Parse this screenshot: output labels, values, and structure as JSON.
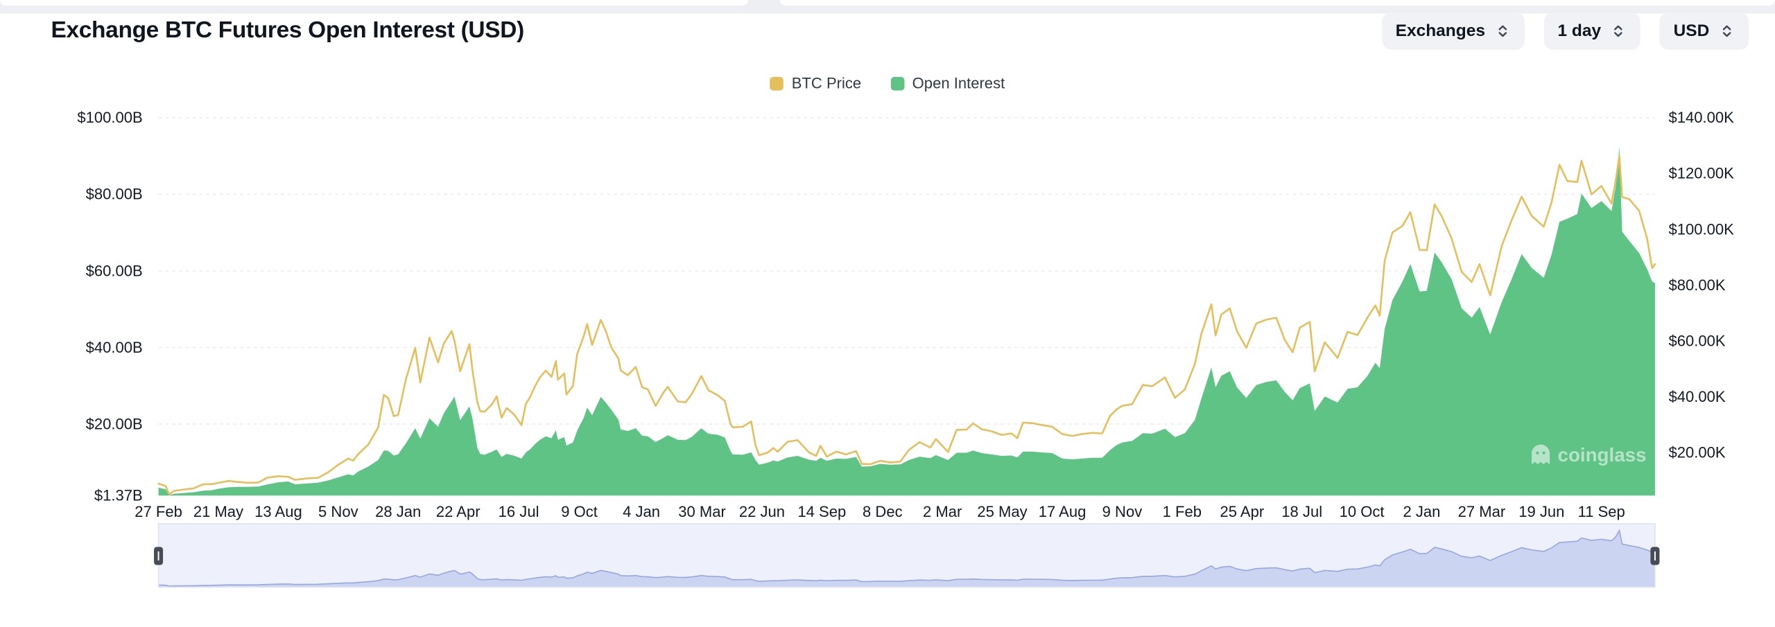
{
  "header": {
    "title": "Exchange BTC Futures Open Interest (USD)",
    "controls": [
      {
        "label": "Exchanges",
        "type": "dropdown"
      },
      {
        "label": "1 day",
        "type": "dropdown"
      },
      {
        "label": "USD",
        "type": "dropdown"
      }
    ]
  },
  "legend": [
    {
      "label": "BTC Price",
      "color": "#e5bf5e"
    },
    {
      "label": "Open Interest",
      "color": "#5ec385"
    }
  ],
  "watermark": "coinglass",
  "chart_data": {
    "type": "line+area",
    "title": "Exchange BTC Futures Open Interest (USD)",
    "grid": "horizontal-dashed",
    "legend_position": "top-center",
    "x_axis": {
      "tick_labels": [
        "27 Feb",
        "21 May",
        "13 Aug",
        "5 Nov",
        "28 Jan",
        "22 Apr",
        "16 Jul",
        "9 Oct",
        "4 Jan",
        "30 Mar",
        "22 Jun",
        "14 Sep",
        "8 Dec",
        "2 Mar",
        "25 May",
        "17 Aug",
        "9 Nov",
        "1 Feb",
        "25 Apr",
        "18 Jul",
        "10 Oct",
        "2 Jan",
        "27 Mar",
        "19 Jun",
        "11 Sep"
      ],
      "tick_dates": [
        "2020-02-27",
        "2020-05-21",
        "2020-08-13",
        "2020-11-05",
        "2021-01-28",
        "2021-04-22",
        "2021-07-16",
        "2021-10-09",
        "2022-01-04",
        "2022-03-30",
        "2022-06-22",
        "2022-09-14",
        "2022-12-08",
        "2023-03-02",
        "2023-05-25",
        "2023-08-17",
        "2023-11-09",
        "2024-02-01",
        "2024-04-25",
        "2024-07-18",
        "2024-10-10",
        "2025-01-02",
        "2025-03-27",
        "2025-06-19",
        "2025-09-11"
      ]
    },
    "y_left": {
      "series": "Open Interest",
      "unit": "USD",
      "tick_labels": [
        "$100.00B",
        "$80.00B",
        "$60.00B",
        "$40.00B",
        "$20.00B",
        "$1.37B"
      ],
      "tick_values": [
        100,
        80,
        60,
        40,
        20,
        1.37
      ]
    },
    "y_right": {
      "series": "BTC Price",
      "unit": "USD",
      "tick_labels": [
        "$140.00K",
        "$120.00K",
        "$100.00K",
        "$80.00K",
        "$60.00K",
        "$40.00K",
        "$20.00K"
      ],
      "tick_values": [
        140,
        120,
        100,
        80,
        60,
        40,
        20
      ]
    },
    "series": [
      {
        "name": "BTC Price",
        "type": "line",
        "axis": "right",
        "color": "#e5bf5e",
        "unit": "USD thousands",
        "column": 1
      },
      {
        "name": "Open Interest",
        "type": "area",
        "axis": "left",
        "color": "#5ec385",
        "unit": "USD billions",
        "column": 2
      }
    ],
    "columns": [
      "date",
      "btc_price_usd_thousands",
      "open_interest_usd_billions"
    ],
    "points": [
      [
        "2020-02-27",
        8.8,
        3.4
      ],
      [
        "2020-03-08",
        8.0,
        3.0
      ],
      [
        "2020-03-13",
        4.9,
        1.4
      ],
      [
        "2020-03-20",
        6.2,
        1.8
      ],
      [
        "2020-04-02",
        6.7,
        2.0
      ],
      [
        "2020-04-16",
        7.1,
        2.2
      ],
      [
        "2020-04-30",
        8.6,
        2.6
      ],
      [
        "2020-05-11",
        8.6,
        2.7
      ],
      [
        "2020-05-21",
        9.1,
        3.1
      ],
      [
        "2020-06-04",
        9.8,
        3.5
      ],
      [
        "2020-06-18",
        9.4,
        3.6
      ],
      [
        "2020-07-02",
        9.1,
        3.6
      ],
      [
        "2020-07-16",
        9.2,
        3.7
      ],
      [
        "2020-07-28",
        10.9,
        4.2
      ],
      [
        "2020-08-13",
        11.5,
        4.8
      ],
      [
        "2020-08-27",
        11.3,
        5.0
      ],
      [
        "2020-09-05",
        10.2,
        4.3
      ],
      [
        "2020-09-24",
        10.7,
        4.5
      ],
      [
        "2020-10-08",
        10.9,
        4.7
      ],
      [
        "2020-10-22",
        12.9,
        5.3
      ],
      [
        "2020-11-05",
        15.6,
        6.1
      ],
      [
        "2020-11-19",
        17.8,
        6.9
      ],
      [
        "2020-11-26",
        17.1,
        6.6
      ],
      [
        "2020-12-03",
        19.4,
        7.6
      ],
      [
        "2020-12-17",
        22.8,
        8.9
      ],
      [
        "2020-12-31",
        29.0,
        10.6
      ],
      [
        "2021-01-08",
        40.6,
        13.1
      ],
      [
        "2021-01-14",
        39.5,
        13.0
      ],
      [
        "2021-01-22",
        33.0,
        11.8
      ],
      [
        "2021-01-28",
        33.4,
        12.1
      ],
      [
        "2021-02-08",
        46.4,
        15.0
      ],
      [
        "2021-02-21",
        57.5,
        18.9
      ],
      [
        "2021-02-28",
        45.1,
        16.2
      ],
      [
        "2021-03-13",
        61.2,
        21.5
      ],
      [
        "2021-03-25",
        52.3,
        19.3
      ],
      [
        "2021-04-02",
        59.0,
        22.8
      ],
      [
        "2021-04-13",
        63.5,
        26.0
      ],
      [
        "2021-04-17",
        60.0,
        27.2
      ],
      [
        "2021-04-25",
        49.1,
        21.0
      ],
      [
        "2021-05-08",
        58.8,
        24.6
      ],
      [
        "2021-05-12",
        49.7,
        21.5
      ],
      [
        "2021-05-19",
        38.0,
        13.8
      ],
      [
        "2021-05-23",
        34.8,
        12.2
      ],
      [
        "2021-05-29",
        34.6,
        12.0
      ],
      [
        "2021-06-09",
        37.4,
        12.8
      ],
      [
        "2021-06-15",
        40.1,
        13.4
      ],
      [
        "2021-06-22",
        32.5,
        11.4
      ],
      [
        "2021-06-29",
        35.9,
        12.2
      ],
      [
        "2021-07-09",
        33.8,
        11.8
      ],
      [
        "2021-07-20",
        29.8,
        11.0
      ],
      [
        "2021-07-26",
        37.3,
        12.6
      ],
      [
        "2021-08-01",
        39.9,
        13.4
      ],
      [
        "2021-08-08",
        43.8,
        14.8
      ],
      [
        "2021-08-15",
        47.0,
        15.9
      ],
      [
        "2021-08-23",
        49.3,
        16.8
      ],
      [
        "2021-08-31",
        47.1,
        16.3
      ],
      [
        "2021-09-06",
        52.7,
        18.4
      ],
      [
        "2021-09-09",
        46.1,
        15.9
      ],
      [
        "2021-09-18",
        48.3,
        16.6
      ],
      [
        "2021-09-21",
        40.7,
        14.4
      ],
      [
        "2021-09-30",
        43.8,
        15.2
      ],
      [
        "2021-10-06",
        55.3,
        18.3
      ],
      [
        "2021-10-15",
        61.6,
        21.6
      ],
      [
        "2021-10-20",
        66.0,
        24.3
      ],
      [
        "2021-10-27",
        58.5,
        22.3
      ],
      [
        "2021-11-08",
        67.5,
        27.1
      ],
      [
        "2021-11-15",
        63.6,
        25.6
      ],
      [
        "2021-11-23",
        57.6,
        23.7
      ],
      [
        "2021-12-03",
        53.6,
        21.1
      ],
      [
        "2021-12-06",
        49.4,
        18.6
      ],
      [
        "2021-12-16",
        47.7,
        18.2
      ],
      [
        "2021-12-27",
        50.7,
        18.9
      ],
      [
        "2022-01-05",
        43.4,
        17.0
      ],
      [
        "2022-01-13",
        42.6,
        16.8
      ],
      [
        "2022-01-24",
        36.7,
        15.3
      ],
      [
        "2022-02-04",
        41.5,
        16.4
      ],
      [
        "2022-02-10",
        43.5,
        17.1
      ],
      [
        "2022-02-24",
        38.3,
        15.9
      ],
      [
        "2022-03-07",
        38.0,
        15.8
      ],
      [
        "2022-03-16",
        41.1,
        16.7
      ],
      [
        "2022-03-29",
        47.4,
        18.9
      ],
      [
        "2022-04-08",
        42.3,
        17.5
      ],
      [
        "2022-04-21",
        40.5,
        17.2
      ],
      [
        "2022-05-01",
        38.5,
        16.5
      ],
      [
        "2022-05-09",
        30.1,
        12.9
      ],
      [
        "2022-05-12",
        29.0,
        12.1
      ],
      [
        "2022-05-26",
        29.2,
        12.0
      ],
      [
        "2022-06-07",
        31.1,
        12.6
      ],
      [
        "2022-06-13",
        22.5,
        10.6
      ],
      [
        "2022-06-18",
        19.0,
        9.4
      ],
      [
        "2022-06-30",
        19.9,
        9.9
      ],
      [
        "2022-07-08",
        21.6,
        10.5
      ],
      [
        "2022-07-14",
        20.3,
        10.2
      ],
      [
        "2022-07-28",
        23.8,
        11.3
      ],
      [
        "2022-08-11",
        24.4,
        11.7
      ],
      [
        "2022-08-27",
        20.0,
        10.7
      ],
      [
        "2022-09-06",
        18.8,
        10.4
      ],
      [
        "2022-09-12",
        22.4,
        11.2
      ],
      [
        "2022-09-21",
        18.5,
        10.4
      ],
      [
        "2022-10-04",
        20.3,
        11.0
      ],
      [
        "2022-10-18",
        19.3,
        10.9
      ],
      [
        "2022-11-01",
        20.5,
        11.4
      ],
      [
        "2022-11-09",
        15.9,
        8.9
      ],
      [
        "2022-11-21",
        15.8,
        9.0
      ],
      [
        "2022-12-05",
        17.0,
        9.6
      ],
      [
        "2022-12-19",
        16.4,
        9.4
      ],
      [
        "2023-01-02",
        16.7,
        9.5
      ],
      [
        "2023-01-14",
        20.9,
        10.6
      ],
      [
        "2023-01-29",
        23.7,
        11.5
      ],
      [
        "2023-02-13",
        21.8,
        11.1
      ],
      [
        "2023-02-21",
        24.8,
        11.9
      ],
      [
        "2023-03-10",
        20.2,
        10.6
      ],
      [
        "2023-03-22",
        28.1,
        12.5
      ],
      [
        "2023-04-05",
        28.2,
        12.5
      ],
      [
        "2023-04-14",
        30.4,
        13.1
      ],
      [
        "2023-04-26",
        28.3,
        12.4
      ],
      [
        "2023-05-10",
        27.6,
        12.1
      ],
      [
        "2023-05-24",
        26.3,
        11.7
      ],
      [
        "2023-06-07",
        26.8,
        11.8
      ],
      [
        "2023-06-15",
        25.1,
        11.3
      ],
      [
        "2023-06-23",
        30.7,
        12.8
      ],
      [
        "2023-07-06",
        30.5,
        12.8
      ],
      [
        "2023-07-20",
        29.8,
        12.6
      ],
      [
        "2023-08-03",
        29.2,
        12.4
      ],
      [
        "2023-08-17",
        26.6,
        11.0
      ],
      [
        "2023-08-31",
        25.9,
        10.8
      ],
      [
        "2023-09-14",
        26.6,
        11.0
      ],
      [
        "2023-09-28",
        27.0,
        11.2
      ],
      [
        "2023-10-12",
        26.8,
        11.2
      ],
      [
        "2023-10-23",
        33.1,
        13.2
      ],
      [
        "2023-11-01",
        35.4,
        14.5
      ],
      [
        "2023-11-09",
        36.7,
        15.2
      ],
      [
        "2023-11-23",
        37.3,
        15.6
      ],
      [
        "2023-12-08",
        44.2,
        17.6
      ],
      [
        "2023-12-21",
        43.7,
        17.5
      ],
      [
        "2024-01-08",
        46.9,
        18.8
      ],
      [
        "2024-01-22",
        39.6,
        16.6
      ],
      [
        "2024-02-05",
        42.6,
        17.6
      ],
      [
        "2024-02-19",
        51.8,
        21.1
      ],
      [
        "2024-02-28",
        62.5,
        26.6
      ],
      [
        "2024-03-13",
        73.1,
        34.8
      ],
      [
        "2024-03-19",
        61.9,
        29.6
      ],
      [
        "2024-03-27",
        69.4,
        32.6
      ],
      [
        "2024-04-08",
        71.6,
        33.8
      ],
      [
        "2024-04-18",
        63.5,
        29.6
      ],
      [
        "2024-05-01",
        57.5,
        26.8
      ],
      [
        "2024-05-15",
        66.2,
        30.2
      ],
      [
        "2024-05-29",
        67.6,
        31.0
      ],
      [
        "2024-06-12",
        68.3,
        31.4
      ],
      [
        "2024-06-24",
        60.3,
        28.4
      ],
      [
        "2024-07-05",
        55.9,
        26.2
      ],
      [
        "2024-07-15",
        64.7,
        29.4
      ],
      [
        "2024-07-29",
        66.8,
        30.6
      ],
      [
        "2024-08-05",
        49.1,
        23.4
      ],
      [
        "2024-08-19",
        59.5,
        27.2
      ],
      [
        "2024-09-06",
        53.9,
        25.6
      ],
      [
        "2024-09-20",
        63.2,
        29.2
      ],
      [
        "2024-10-04",
        62.1,
        29.6
      ],
      [
        "2024-10-18",
        68.4,
        32.6
      ],
      [
        "2024-10-29",
        72.7,
        36.0
      ],
      [
        "2024-11-04",
        69.0,
        34.6
      ],
      [
        "2024-11-11",
        88.7,
        44.8
      ],
      [
        "2024-11-22",
        98.9,
        52.4
      ],
      [
        "2024-12-06",
        101.2,
        57.2
      ],
      [
        "2024-12-17",
        106.1,
        61.8
      ],
      [
        "2024-12-30",
        92.6,
        54.6
      ],
      [
        "2025-01-09",
        92.5,
        54.8
      ],
      [
        "2025-01-20",
        108.9,
        64.8
      ],
      [
        "2025-01-30",
        104.7,
        62.2
      ],
      [
        "2025-02-13",
        96.6,
        57.8
      ],
      [
        "2025-02-27",
        84.7,
        50.2
      ],
      [
        "2025-03-13",
        81.1,
        47.8
      ],
      [
        "2025-03-24",
        87.5,
        50.6
      ],
      [
        "2025-04-08",
        76.3,
        43.4
      ],
      [
        "2025-04-24",
        93.9,
        51.8
      ],
      [
        "2025-05-08",
        103.2,
        57.8
      ],
      [
        "2025-05-22",
        111.7,
        64.4
      ],
      [
        "2025-06-05",
        104.8,
        60.8
      ],
      [
        "2025-06-22",
        100.9,
        58.2
      ],
      [
        "2025-07-03",
        109.6,
        64.2
      ],
      [
        "2025-07-14",
        123.1,
        72.8
      ],
      [
        "2025-07-25",
        117.3,
        73.6
      ],
      [
        "2025-08-08",
        116.9,
        74.8
      ],
      [
        "2025-08-14",
        124.5,
        80.2
      ],
      [
        "2025-08-28",
        112.5,
        76.4
      ],
      [
        "2025-09-11",
        115.5,
        78.2
      ],
      [
        "2025-09-25",
        109.2,
        75.6
      ],
      [
        "2025-10-01",
        117.5,
        82.0
      ],
      [
        "2025-10-06",
        126.2,
        92.4
      ],
      [
        "2025-10-10",
        111.5,
        70.2
      ],
      [
        "2025-10-20",
        110.8,
        67.8
      ],
      [
        "2025-11-03",
        106.5,
        64.6
      ],
      [
        "2025-11-14",
        96.5,
        60.4
      ],
      [
        "2025-11-21",
        86.0,
        57.2
      ],
      [
        "2025-11-25",
        87.5,
        56.8
      ]
    ],
    "navigator": {
      "series": "Open Interest",
      "selected_range": "full"
    }
  }
}
